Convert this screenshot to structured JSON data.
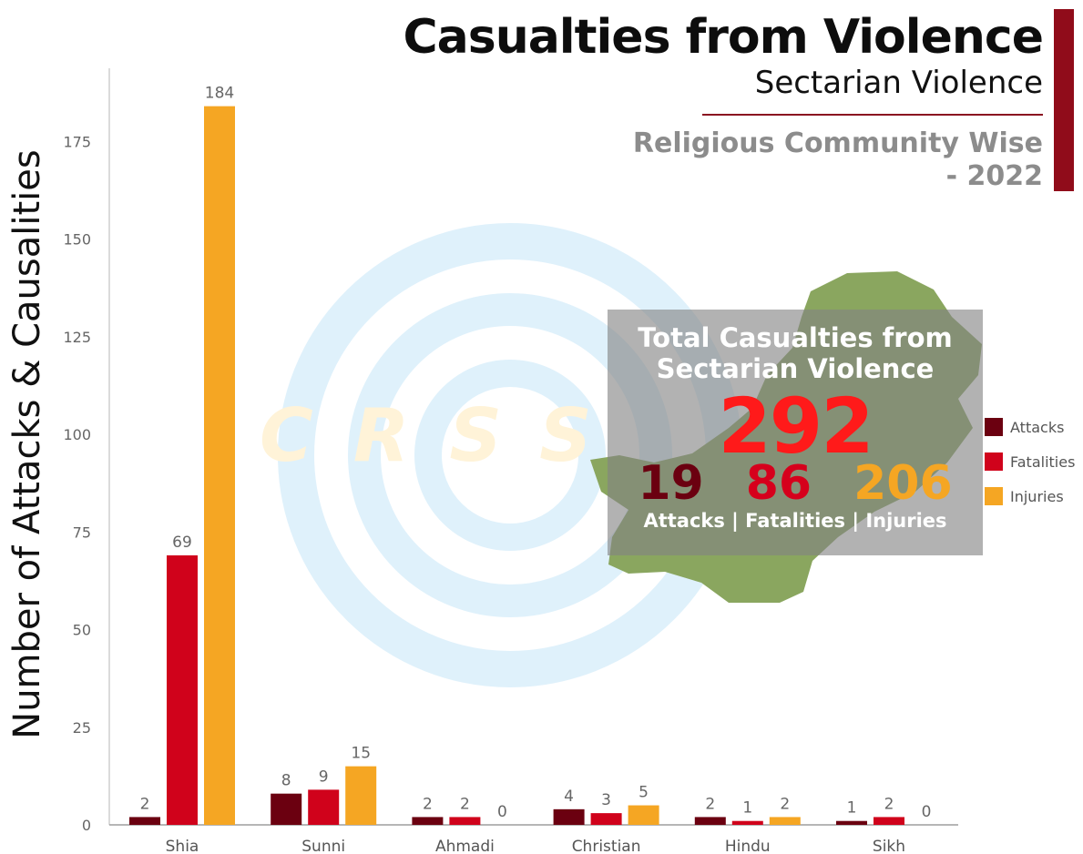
{
  "header": {
    "title": "Casualties from Violence",
    "subtitle": "Sectarian Violence",
    "subtitle2_line1": "Religious Community Wise",
    "subtitle2_line2": "- 2022",
    "accent_color": "#900c1a"
  },
  "watermark": "CRSS",
  "summary": {
    "title_line1": "Total Casualties from",
    "title_line2": "Sectarian Violence",
    "total": "292",
    "attacks": "19",
    "fatalities": "86",
    "injuries": "206",
    "caption": "Attacks | Fatalities | Injuries",
    "colors": {
      "total": "#ff1a1a",
      "attacks": "#6b0010",
      "fatalities": "#d6001c",
      "injuries": "#f5a623"
    }
  },
  "chart_data": {
    "type": "bar",
    "title": "",
    "xlabel": "",
    "ylabel": "Number of Attacks & Causalities",
    "categories": [
      "Shia",
      "Sunni",
      "Ahmadi",
      "Christian",
      "Hindu",
      "Sikh"
    ],
    "series": [
      {
        "name": "Attacks",
        "color": "#6b0010",
        "values": [
          2,
          8,
          2,
          4,
          2,
          1
        ]
      },
      {
        "name": "Fatalities",
        "color": "#d0021b",
        "values": [
          69,
          9,
          2,
          3,
          1,
          2
        ]
      },
      {
        "name": "Injuries",
        "color": "#f5a623",
        "values": [
          184,
          15,
          0,
          5,
          2,
          0
        ]
      }
    ],
    "ylim": [
      0,
      193
    ],
    "yticks": [
      0,
      25,
      50,
      75,
      100,
      125,
      150,
      175
    ],
    "grid": false,
    "legend_position": "right"
  }
}
